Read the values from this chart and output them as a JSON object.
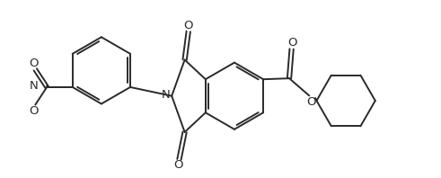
{
  "bg_color": "#ffffff",
  "line_color": "#2a2a2a",
  "lw": 1.4,
  "figsize": [
    4.91,
    1.98
  ],
  "dpi": 100,
  "xlim": [
    0,
    9.5
  ],
  "ylim": [
    0,
    3.8
  ]
}
